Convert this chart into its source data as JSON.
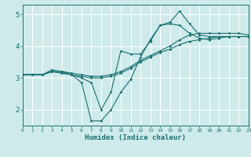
{
  "xlabel": "Humidex (Indice chaleur)",
  "bg_color": "#ceeaea",
  "grid_color": "#ffffff",
  "line_color": "#1a7070",
  "xlim": [
    0,
    23
  ],
  "ylim": [
    1.5,
    5.3
  ],
  "yticks": [
    2,
    3,
    4,
    5
  ],
  "xticks": [
    0,
    1,
    2,
    3,
    4,
    5,
    6,
    7,
    8,
    9,
    10,
    11,
    12,
    13,
    14,
    15,
    16,
    17,
    18,
    19,
    20,
    21,
    22,
    23
  ],
  "series1_x": [
    0,
    1,
    2,
    3,
    4,
    5,
    6,
    7,
    8,
    9,
    10,
    11,
    12,
    13,
    14,
    15,
    16,
    17,
    18,
    19,
    20,
    21,
    22,
    23
  ],
  "series1_y": [
    3.1,
    3.1,
    3.1,
    3.2,
    3.15,
    3.1,
    2.85,
    1.65,
    1.65,
    2.0,
    2.55,
    2.95,
    3.65,
    4.2,
    4.65,
    4.7,
    4.65,
    4.4,
    4.25,
    4.2,
    4.25,
    4.3,
    4.3,
    4.3
  ],
  "series2_x": [
    0,
    1,
    2,
    3,
    4,
    5,
    6,
    7,
    8,
    9,
    10,
    11,
    12,
    13,
    14,
    15,
    16,
    17,
    18,
    19,
    20,
    21,
    22,
    23
  ],
  "series2_y": [
    3.1,
    3.1,
    3.1,
    3.2,
    3.15,
    3.1,
    3.05,
    3.0,
    3.0,
    3.05,
    3.15,
    3.3,
    3.5,
    3.65,
    3.8,
    3.9,
    4.05,
    4.15,
    4.2,
    4.25,
    4.3,
    4.3,
    4.3,
    4.3
  ],
  "series3_x": [
    0,
    1,
    2,
    3,
    4,
    5,
    6,
    7,
    8,
    9,
    10,
    11,
    12,
    13,
    14,
    15,
    16,
    17,
    18,
    19,
    20,
    21,
    22,
    23
  ],
  "series3_y": [
    3.1,
    3.1,
    3.1,
    3.2,
    3.2,
    3.15,
    3.1,
    3.05,
    3.05,
    3.1,
    3.2,
    3.35,
    3.55,
    3.7,
    3.85,
    4.0,
    4.2,
    4.35,
    4.4,
    4.4,
    4.4,
    4.4,
    4.4,
    4.35
  ],
  "series4_x": [
    0,
    1,
    2,
    3,
    4,
    5,
    6,
    7,
    8,
    9,
    10,
    11,
    12,
    13,
    14,
    15,
    16,
    17,
    18,
    19,
    20,
    21,
    22,
    23
  ],
  "series4_y": [
    3.1,
    3.1,
    3.1,
    3.25,
    3.2,
    3.1,
    3.0,
    2.85,
    2.0,
    2.55,
    3.85,
    3.75,
    3.75,
    4.15,
    4.65,
    4.75,
    5.1,
    4.7,
    4.35,
    4.3,
    4.3,
    4.3,
    4.3,
    4.3
  ]
}
